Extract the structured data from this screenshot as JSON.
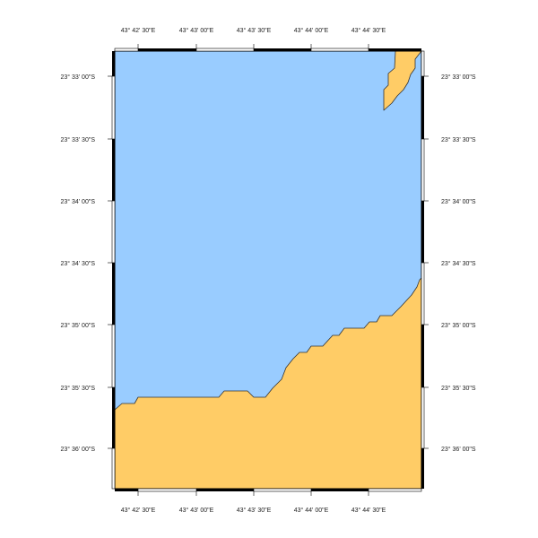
{
  "map": {
    "colors": {
      "water": "#99ccff",
      "land": "#ffcc66",
      "coastline": "#333333",
      "frame_dark": "#000000",
      "frame_light": "#ffffff",
      "text": "#222222"
    },
    "lon_labels": [
      "43° 42' 30\"E",
      "43° 43' 00\"E",
      "43° 43' 30\"E",
      "43° 44' 00\"E",
      "43° 44' 30\"E"
    ],
    "lat_labels": [
      "23° 33' 00\"S",
      "23° 33' 30\"S",
      "23° 34' 00\"S",
      "23° 34' 30\"S",
      "23° 35' 00\"S",
      "23° 35' 30\"S",
      "23° 36' 00\"S"
    ]
  }
}
